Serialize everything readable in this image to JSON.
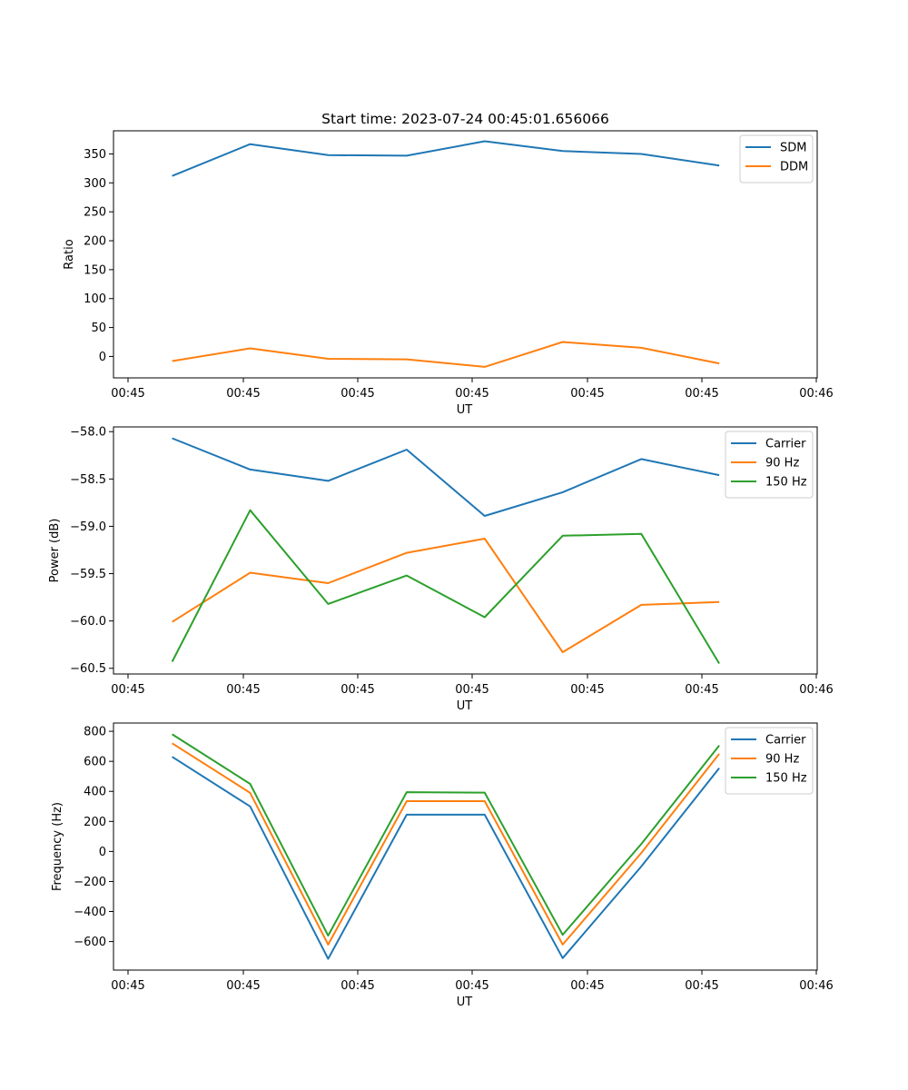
{
  "title": "Start time: 2023-07-24 00:45:01.656066",
  "colors": {
    "c0": "#1f77b4",
    "c1": "#ff7f0e",
    "c2": "#2ca02c"
  },
  "chart_data": [
    {
      "type": "line",
      "xlabel": "UT",
      "ylabel": "Ratio",
      "x_ticks": [
        "00:45",
        "00:45",
        "00:45",
        "00:45",
        "00:45",
        "00:45",
        "00:45",
        "00:46"
      ],
      "xlim": [
        0,
        12
      ],
      "x": [
        1,
        2.33,
        3.66,
        5,
        6.33,
        7.66,
        9,
        10.33
      ],
      "ylim": [
        -37,
        390
      ],
      "yticks": [
        0,
        50,
        100,
        150,
        200,
        250,
        300,
        350
      ],
      "legend_location": "top-right",
      "series": [
        {
          "name": "SDM",
          "color": "#1f77b4",
          "values": [
            312,
            367,
            348,
            347,
            372,
            355,
            350,
            330
          ]
        },
        {
          "name": "DDM",
          "color": "#ff7f0e",
          "values": [
            -8,
            14,
            -4,
            -5,
            -18,
            25,
            15,
            -12
          ]
        }
      ]
    },
    {
      "type": "line",
      "xlabel": "UT",
      "ylabel": "Power (dB)",
      "x_ticks": [
        "00:45",
        "00:45",
        "00:45",
        "00:45",
        "00:45",
        "00:45",
        "00:45",
        "00:46"
      ],
      "xlim": [
        0,
        12
      ],
      "x": [
        1,
        2.33,
        3.66,
        5,
        6.33,
        7.66,
        9,
        10.33
      ],
      "ylim": [
        -60.56,
        -57.95
      ],
      "yticks": [
        -58.0,
        -58.5,
        -59.0,
        -59.5,
        -60.0,
        -60.5
      ],
      "legend_location": "top-right",
      "series": [
        {
          "name": "Carrier",
          "color": "#1f77b4",
          "values": [
            -58.07,
            -58.4,
            -58.52,
            -58.19,
            -58.89,
            -58.64,
            -58.29,
            -58.46
          ]
        },
        {
          "name": "90 Hz",
          "color": "#ff7f0e",
          "values": [
            -60.01,
            -59.49,
            -59.6,
            -59.28,
            -59.13,
            -60.33,
            -59.83,
            -59.8
          ]
        },
        {
          "name": "150 Hz",
          "color": "#2ca02c",
          "values": [
            -60.43,
            -58.83,
            -59.82,
            -59.52,
            -59.96,
            -59.1,
            -59.08,
            -60.45
          ]
        }
      ]
    },
    {
      "type": "line",
      "xlabel": "UT",
      "ylabel": "Frequency (Hz)",
      "x_ticks": [
        "00:45",
        "00:45",
        "00:45",
        "00:45",
        "00:45",
        "00:45",
        "00:45",
        "00:46"
      ],
      "xlim": [
        0,
        12
      ],
      "x": [
        1,
        2.33,
        3.66,
        5,
        6.33,
        7.66,
        9,
        10.33
      ],
      "ylim": [
        -790,
        855
      ],
      "yticks": [
        800,
        600,
        400,
        200,
        0,
        -200,
        -400,
        -600
      ],
      "legend_location": "top-right",
      "series": [
        {
          "name": "Carrier",
          "color": "#1f77b4",
          "values": [
            630,
            300,
            -715,
            245,
            245,
            -710,
            -100,
            555
          ]
        },
        {
          "name": "90 Hz",
          "color": "#ff7f0e",
          "values": [
            720,
            390,
            -620,
            335,
            335,
            -620,
            -10,
            650
          ]
        },
        {
          "name": "150 Hz",
          "color": "#2ca02c",
          "values": [
            780,
            450,
            -560,
            395,
            392,
            -555,
            50,
            705
          ]
        }
      ]
    }
  ]
}
